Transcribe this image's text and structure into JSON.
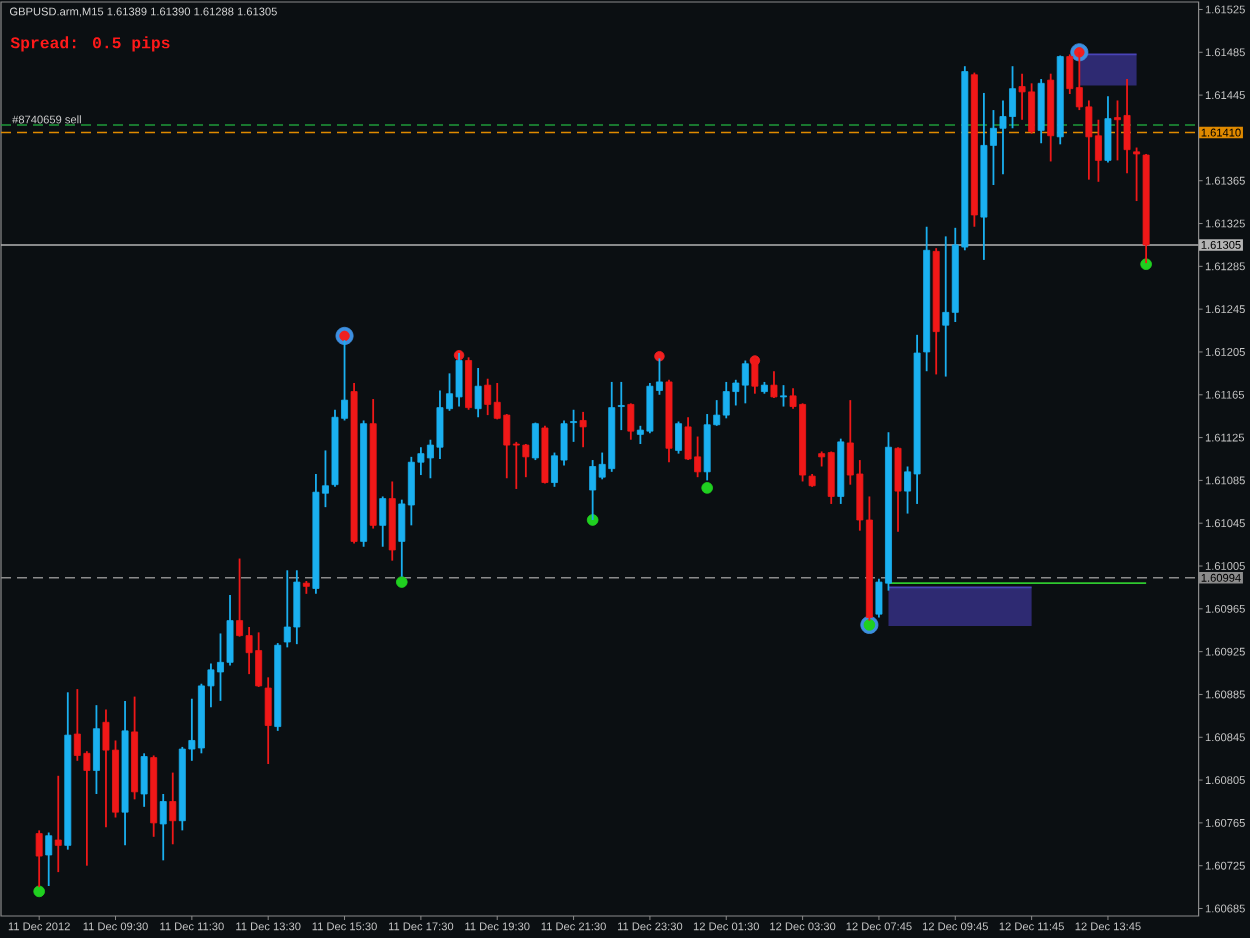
{
  "chart_data": {
    "type": "candlestick",
    "title": "GBPUSD.arm,M15 1.61389 1.61390 1.61288 1.61305",
    "subtitle": "Spread: 0.5 pips",
    "annotations": [
      {
        "text": "#8740659 sell",
        "y": 1.61417
      }
    ],
    "categories": [
      "11 Dec 2012",
      null,
      null,
      null,
      null,
      null,
      null,
      null,
      "11 Dec 09:30",
      null,
      null,
      null,
      null,
      null,
      null,
      null,
      "11 Dec 11:30",
      null,
      null,
      null,
      null,
      null,
      null,
      null,
      "11 Dec 13:30",
      null,
      null,
      null,
      null,
      null,
      null,
      null,
      "11 Dec 15:30",
      null,
      null,
      null,
      null,
      null,
      null,
      null,
      "11 Dec 17:30",
      null,
      null,
      null,
      null,
      null,
      null,
      null,
      "11 Dec 19:30",
      null,
      null,
      null,
      null,
      null,
      null,
      null,
      "11 Dec 21:30",
      null,
      null,
      null,
      null,
      null,
      null,
      null,
      "11 Dec 23:30",
      null,
      null,
      null,
      null,
      null,
      null,
      null,
      "12 Dec 01:30",
      null,
      null,
      null,
      null,
      null,
      null,
      null,
      "12 Dec 03:30",
      null,
      null,
      null,
      null,
      null,
      null,
      null,
      "12 Dec 07:45",
      null,
      null,
      null,
      null,
      null,
      null,
      null,
      "12 Dec 09:45",
      null,
      null,
      null,
      null,
      null,
      null,
      null,
      "12 Dec 11:45",
      null,
      null,
      null,
      null,
      null,
      null,
      null,
      "12 Dec 13:45",
      null,
      null,
      null,
      null
    ],
    "ylim": [
      1.60678,
      1.61532
    ],
    "yticks": [
      1.60685,
      1.60725,
      1.60765,
      1.60805,
      1.60845,
      1.60885,
      1.60925,
      1.60965,
      1.61005,
      1.61045,
      1.61085,
      1.61125,
      1.61165,
      1.61205,
      1.61245,
      1.61285,
      1.61325,
      1.61365,
      1.61445,
      1.61485,
      1.61525
    ],
    "ref_lines": [
      {
        "axis": "y",
        "value": 1.61417,
        "color": "#1f9a3a",
        "line_style": "dashed"
      },
      {
        "axis": "y",
        "value": 1.6141,
        "label": "1.61410",
        "color": "#e08a00",
        "line_style": "dashed"
      },
      {
        "axis": "y",
        "value": 1.61305,
        "label": "1.61305",
        "color": "#b4b4b4",
        "line_style": "solid"
      },
      {
        "axis": "y",
        "value": 1.60994,
        "label": "1.60994",
        "color": "#8c8c8c",
        "line_style": "dashed"
      }
    ],
    "series": [
      {
        "type": "line",
        "color": "#4a44b8",
        "values": [
          null,
          null,
          null,
          null,
          null,
          null,
          null,
          null,
          null,
          null,
          null,
          null,
          null,
          null,
          null,
          null,
          null,
          null,
          null,
          null,
          null,
          null,
          null,
          null,
          null,
          null,
          null,
          null,
          null,
          null,
          null,
          null,
          null,
          null,
          null,
          null,
          null,
          null,
          null,
          null,
          null,
          null,
          null,
          null,
          null,
          null,
          null,
          null,
          null,
          null,
          null,
          null,
          null,
          null,
          null,
          null,
          null,
          null,
          null,
          null,
          null,
          null,
          null,
          null,
          null,
          null,
          null,
          null,
          null,
          null,
          null,
          null,
          null,
          null,
          null,
          null,
          null,
          null,
          null,
          null,
          null,
          null,
          null,
          null,
          null,
          null,
          null,
          null,
          null,
          1.60985,
          1.60985,
          1.60985,
          1.60985,
          1.60985,
          1.60985,
          1.60985,
          1.60985,
          1.60985,
          1.60985,
          1.60985,
          1.60985,
          1.60985,
          1.60985,
          1.60985,
          1.60985,
          null,
          null,
          null,
          null,
          null,
          null,
          null,
          null,
          null,
          null,
          null,
          null
        ],
        "upper": [
          null,
          null,
          null,
          null,
          null,
          null,
          null,
          null,
          null,
          null,
          null,
          null,
          null,
          null,
          null,
          null,
          null,
          null,
          null,
          null,
          null,
          null,
          null,
          null,
          null,
          null,
          null,
          null,
          null,
          null,
          null,
          null,
          null,
          null,
          null,
          null,
          null,
          null,
          null,
          null,
          null,
          null,
          null,
          null,
          null,
          null,
          null,
          null,
          null,
          null,
          null,
          null,
          null,
          null,
          null,
          null,
          null,
          null,
          null,
          null,
          null,
          null,
          null,
          null,
          null,
          null,
          null,
          null,
          null,
          null,
          null,
          null,
          null,
          null,
          null,
          null,
          null,
          null,
          null,
          null,
          null,
          null,
          null,
          null,
          null,
          null,
          null,
          null,
          null,
          1.60985,
          1.60985,
          1.60985,
          1.60985,
          1.60985,
          1.60985,
          1.60985,
          1.60985,
          1.60985,
          1.60985,
          1.60985,
          1.60985,
          1.60985,
          1.60985,
          1.60985,
          1.60985,
          null,
          null,
          null,
          null,
          null,
          null,
          null,
          null,
          null,
          null,
          null,
          null
        ],
        "lower": [
          null,
          null,
          null,
          null,
          null,
          null,
          null,
          null,
          null,
          null,
          null,
          null,
          null,
          null,
          null,
          null,
          null,
          null,
          null,
          null,
          null,
          null,
          null,
          null,
          null,
          null,
          null,
          null,
          null,
          null,
          null,
          null,
          null,
          null,
          null,
          null,
          null,
          null,
          null,
          null,
          null,
          null,
          null,
          null,
          null,
          null,
          null,
          null,
          null,
          null,
          null,
          null,
          null,
          null,
          null,
          null,
          null,
          null,
          null,
          null,
          null,
          null,
          null,
          null,
          null,
          null,
          null,
          null,
          null,
          null,
          null,
          null,
          null,
          null,
          null,
          null,
          null,
          null,
          null,
          null,
          null,
          null,
          null,
          null,
          null,
          null,
          null,
          null,
          null,
          1.60949,
          1.60949,
          1.60949,
          1.60949,
          1.60949,
          1.60949,
          1.60949,
          1.60949,
          1.60949,
          1.60949,
          1.60949,
          1.60949,
          1.60949,
          1.60949,
          1.60949,
          1.60949,
          null,
          null,
          null,
          null,
          null,
          null,
          null,
          null,
          null,
          null,
          null,
          null
        ]
      },
      {
        "type": "line",
        "color": "#4a44b8",
        "values": [
          null,
          null,
          null,
          null,
          null,
          null,
          null,
          null,
          null,
          null,
          null,
          null,
          null,
          null,
          null,
          null,
          null,
          null,
          null,
          null,
          null,
          null,
          null,
          null,
          null,
          null,
          null,
          null,
          null,
          null,
          null,
          null,
          null,
          null,
          null,
          null,
          null,
          null,
          null,
          null,
          null,
          null,
          null,
          null,
          null,
          null,
          null,
          null,
          null,
          null,
          null,
          null,
          null,
          null,
          null,
          null,
          null,
          null,
          null,
          null,
          null,
          null,
          null,
          null,
          null,
          null,
          null,
          null,
          null,
          null,
          null,
          null,
          null,
          null,
          null,
          null,
          null,
          null,
          null,
          null,
          null,
          null,
          null,
          null,
          null,
          null,
          null,
          null,
          null,
          null,
          null,
          null,
          null,
          null,
          null,
          null,
          null,
          null,
          null,
          null,
          null,
          null,
          null,
          null,
          null,
          null,
          null,
          null,
          null,
          1.61483,
          1.61483,
          1.61483,
          1.61483,
          1.61483,
          1.61483,
          1.61483,
          null
        ],
        "upper": [
          null,
          null,
          null,
          null,
          null,
          null,
          null,
          null,
          null,
          null,
          null,
          null,
          null,
          null,
          null,
          null,
          null,
          null,
          null,
          null,
          null,
          null,
          null,
          null,
          null,
          null,
          null,
          null,
          null,
          null,
          null,
          null,
          null,
          null,
          null,
          null,
          null,
          null,
          null,
          null,
          null,
          null,
          null,
          null,
          null,
          null,
          null,
          null,
          null,
          null,
          null,
          null,
          null,
          null,
          null,
          null,
          null,
          null,
          null,
          null,
          null,
          null,
          null,
          null,
          null,
          null,
          null,
          null,
          null,
          null,
          null,
          null,
          null,
          null,
          null,
          null,
          null,
          null,
          null,
          null,
          null,
          null,
          null,
          null,
          null,
          null,
          null,
          null,
          null,
          null,
          null,
          null,
          null,
          null,
          null,
          null,
          null,
          null,
          null,
          null,
          null,
          null,
          null,
          null,
          null,
          null,
          null,
          null,
          null,
          1.61483,
          1.61483,
          1.61483,
          1.61483,
          1.61483,
          1.61483,
          1.61483,
          null
        ],
        "lower": [
          null,
          null,
          null,
          null,
          null,
          null,
          null,
          null,
          null,
          null,
          null,
          null,
          null,
          null,
          null,
          null,
          null,
          null,
          null,
          null,
          null,
          null,
          null,
          null,
          null,
          null,
          null,
          null,
          null,
          null,
          null,
          null,
          null,
          null,
          null,
          null,
          null,
          null,
          null,
          null,
          null,
          null,
          null,
          null,
          null,
          null,
          null,
          null,
          null,
          null,
          null,
          null,
          null,
          null,
          null,
          null,
          null,
          null,
          null,
          null,
          null,
          null,
          null,
          null,
          null,
          null,
          null,
          null,
          null,
          null,
          null,
          null,
          null,
          null,
          null,
          null,
          null,
          null,
          null,
          null,
          null,
          null,
          null,
          null,
          null,
          null,
          null,
          null,
          null,
          null,
          null,
          null,
          null,
          null,
          null,
          null,
          null,
          null,
          null,
          null,
          null,
          null,
          null,
          null,
          null,
          null,
          null,
          null,
          null,
          1.61454,
          1.61454,
          1.61454,
          1.61454,
          1.61454,
          1.61454,
          1.61454,
          null
        ]
      },
      {
        "type": "line",
        "color": "#2fc92f",
        "values": [
          null,
          null,
          null,
          null,
          null,
          null,
          null,
          null,
          null,
          null,
          null,
          null,
          null,
          null,
          null,
          null,
          null,
          null,
          null,
          null,
          null,
          null,
          null,
          null,
          null,
          null,
          null,
          null,
          null,
          null,
          null,
          null,
          null,
          null,
          null,
          null,
          null,
          null,
          null,
          null,
          null,
          null,
          null,
          null,
          null,
          null,
          null,
          null,
          null,
          null,
          null,
          null,
          null,
          null,
          null,
          null,
          null,
          null,
          null,
          null,
          null,
          null,
          null,
          null,
          null,
          null,
          null,
          null,
          null,
          null,
          null,
          null,
          null,
          null,
          null,
          null,
          null,
          null,
          null,
          null,
          null,
          null,
          null,
          null,
          null,
          null,
          null,
          null,
          null,
          1.60989,
          1.60989,
          1.60989,
          1.60989,
          1.60989,
          1.60989,
          1.60989,
          1.60989,
          1.60989,
          1.60989,
          1.60989,
          1.60989,
          1.60989,
          1.60989,
          1.60989,
          1.60989,
          1.60989,
          1.60989,
          1.60989,
          1.60989,
          1.60989,
          1.60989,
          1.60989,
          1.60989,
          1.60989,
          1.60989,
          1.60989,
          1.60989
        ]
      },
      {
        "type": "scatter",
        "marker": "circle",
        "color": "#3d8fe0",
        "values": [
          null,
          null,
          null,
          null,
          null,
          null,
          null,
          null,
          null,
          null,
          null,
          null,
          null,
          null,
          null,
          null,
          null,
          null,
          null,
          null,
          null,
          null,
          null,
          null,
          null,
          null,
          null,
          null,
          null,
          null,
          null,
          null,
          1.6122,
          null,
          null,
          null,
          null,
          null,
          null,
          null,
          null,
          null,
          null,
          null,
          null,
          null,
          null,
          null,
          null,
          null,
          null,
          null,
          null,
          null,
          null,
          null,
          null,
          null,
          null,
          null,
          null,
          null,
          null,
          null,
          null,
          null,
          null,
          null,
          null,
          null,
          null,
          null,
          null,
          null,
          null,
          null,
          null,
          null,
          null,
          null,
          null,
          null,
          null,
          null,
          null,
          null,
          null,
          1.6095,
          null,
          null,
          null,
          null,
          null,
          null,
          null,
          null,
          null,
          null,
          null,
          null,
          null,
          null,
          null,
          null,
          null,
          null,
          null,
          null,
          null,
          1.61485,
          null,
          null,
          null,
          null,
          null,
          null,
          null
        ]
      },
      {
        "type": "scatter",
        "marker": "circle",
        "color": "#f02020",
        "values": [
          null,
          null,
          null,
          null,
          null,
          null,
          null,
          null,
          null,
          null,
          null,
          null,
          null,
          null,
          null,
          null,
          null,
          null,
          null,
          null,
          null,
          null,
          null,
          null,
          null,
          null,
          null,
          null,
          null,
          null,
          null,
          null,
          1.6122,
          null,
          null,
          null,
          null,
          null,
          null,
          null,
          null,
          null,
          null,
          null,
          1.61202,
          null,
          null,
          null,
          null,
          null,
          null,
          null,
          null,
          null,
          null,
          null,
          null,
          null,
          null,
          null,
          null,
          null,
          null,
          null,
          null,
          1.61201,
          null,
          null,
          null,
          null,
          null,
          null,
          null,
          null,
          null,
          1.61197,
          null,
          null,
          null,
          null,
          null,
          null,
          null,
          null,
          null,
          null,
          null,
          null,
          null,
          null,
          null,
          null,
          null,
          null,
          null,
          null,
          null,
          null,
          null,
          null,
          null,
          null,
          null,
          null,
          null,
          null,
          null,
          null,
          null,
          1.61485,
          null,
          null,
          null,
          null,
          null,
          null,
          null
        ]
      },
      {
        "type": "scatter",
        "marker": "circle",
        "color": "#20d020",
        "values": [
          1.60701,
          null,
          null,
          null,
          null,
          null,
          null,
          null,
          null,
          null,
          null,
          null,
          null,
          null,
          null,
          null,
          null,
          null,
          null,
          null,
          null,
          null,
          null,
          null,
          null,
          null,
          null,
          null,
          null,
          null,
          null,
          null,
          null,
          null,
          null,
          null,
          null,
          null,
          1.6099,
          null,
          null,
          null,
          null,
          null,
          null,
          null,
          null,
          null,
          null,
          null,
          null,
          null,
          null,
          null,
          null,
          null,
          null,
          null,
          1.61048,
          null,
          null,
          null,
          null,
          null,
          null,
          null,
          null,
          null,
          null,
          null,
          1.61078,
          null,
          null,
          null,
          null,
          null,
          null,
          null,
          null,
          null,
          null,
          null,
          null,
          null,
          null,
          null,
          null,
          1.6095,
          null,
          null,
          null,
          null,
          null,
          null,
          null,
          null,
          null,
          null,
          null,
          null,
          null,
          null,
          null,
          null,
          null,
          null,
          null,
          null,
          null,
          null,
          null,
          null,
          null,
          null,
          null,
          null,
          1.61287
        ]
      },
      {
        "type": "candlestick",
        "ohlc": [
          [
            1.60755,
            1.60758,
            1.60705,
            1.60734
          ],
          [
            1.60735,
            1.60756,
            1.60706,
            1.60753
          ],
          [
            1.60749,
            1.60809,
            1.60719,
            1.60744
          ],
          [
            1.60744,
            1.60887,
            1.6074,
            1.60847
          ],
          [
            1.60848,
            1.6089,
            1.60823,
            1.60828
          ],
          [
            1.6083,
            1.60832,
            1.60725,
            1.60814
          ],
          [
            1.60814,
            1.60875,
            1.60792,
            1.60853
          ],
          [
            1.60859,
            1.60871,
            1.60761,
            1.60833
          ],
          [
            1.60833,
            1.60842,
            1.6077,
            1.60775
          ],
          [
            1.60775,
            1.60879,
            1.60744,
            1.60851
          ],
          [
            1.6085,
            1.60883,
            1.60787,
            1.60794
          ],
          [
            1.60792,
            1.6083,
            1.6078,
            1.60827
          ],
          [
            1.60826,
            1.60828,
            1.60752,
            1.60765
          ],
          [
            1.60764,
            1.60792,
            1.6073,
            1.60785
          ],
          [
            1.60785,
            1.60812,
            1.60745,
            1.60767
          ],
          [
            1.60767,
            1.60836,
            1.60758,
            1.60834
          ],
          [
            1.60834,
            1.60881,
            1.60823,
            1.60842
          ],
          [
            1.60835,
            1.60895,
            1.6083,
            1.60893
          ],
          [
            1.60893,
            1.60914,
            1.60873,
            1.60908
          ],
          [
            1.60906,
            1.60942,
            1.60879,
            1.60915
          ],
          [
            1.60915,
            1.60978,
            1.60912,
            1.60954
          ],
          [
            1.60954,
            1.61012,
            1.60939,
            1.6094
          ],
          [
            1.6094,
            1.60948,
            1.60904,
            1.60924
          ],
          [
            1.60926,
            1.60943,
            1.60892,
            1.60893
          ],
          [
            1.60891,
            1.60901,
            1.6082,
            1.60856
          ],
          [
            1.60855,
            1.60933,
            1.60851,
            1.60931
          ],
          [
            1.60934,
            1.61001,
            1.60929,
            1.60948
          ],
          [
            1.60948,
            1.61001,
            1.60932,
            1.6099
          ],
          [
            1.60989,
            1.60991,
            1.60979,
            1.60986
          ],
          [
            1.60984,
            1.61091,
            1.60979,
            1.61074
          ],
          [
            1.61073,
            1.61113,
            1.6106,
            1.6108
          ],
          [
            1.61081,
            1.61151,
            1.61079,
            1.61144
          ],
          [
            1.61143,
            1.61216,
            1.61141,
            1.6116
          ],
          [
            1.61168,
            1.61176,
            1.61026,
            1.61028
          ],
          [
            1.61028,
            1.61141,
            1.61023,
            1.61138
          ],
          [
            1.61138,
            1.61161,
            1.6104,
            1.61043
          ],
          [
            1.61043,
            1.6107,
            1.61023,
            1.61068
          ],
          [
            1.61068,
            1.61084,
            1.6101,
            1.6102
          ],
          [
            1.61028,
            1.61067,
            1.60995,
            1.61063
          ],
          [
            1.61062,
            1.61107,
            1.61043,
            1.61102
          ],
          [
            1.61102,
            1.61116,
            1.6109,
            1.6111
          ],
          [
            1.61106,
            1.61123,
            1.61087,
            1.61118
          ],
          [
            1.61116,
            1.61169,
            1.61105,
            1.61153
          ],
          [
            1.61152,
            1.61185,
            1.6115,
            1.61166
          ],
          [
            1.61163,
            1.61204,
            1.61154,
            1.61197
          ],
          [
            1.61197,
            1.612,
            1.61151,
            1.61153
          ],
          [
            1.61152,
            1.6119,
            1.61144,
            1.61173
          ],
          [
            1.61174,
            1.6118,
            1.61146,
            1.61156
          ],
          [
            1.61158,
            1.61176,
            1.61142,
            1.61143
          ],
          [
            1.61146,
            1.61147,
            1.61087,
            1.61118
          ],
          [
            1.61119,
            1.61121,
            1.61077,
            1.61118
          ],
          [
            1.61118,
            1.61119,
            1.61088,
            1.61107
          ],
          [
            1.61106,
            1.61139,
            1.61104,
            1.61138
          ],
          [
            1.61134,
            1.61136,
            1.61082,
            1.61083
          ],
          [
            1.61083,
            1.61111,
            1.61079,
            1.61108
          ],
          [
            1.61104,
            1.61141,
            1.61099,
            1.61138
          ],
          [
            1.61139,
            1.61151,
            1.61121,
            1.6114
          ],
          [
            1.61141,
            1.61149,
            1.61116,
            1.61135
          ],
          [
            1.61076,
            1.61104,
            1.61048,
            1.61098
          ],
          [
            1.61088,
            1.61111,
            1.61086,
            1.611
          ],
          [
            1.61096,
            1.61177,
            1.61093,
            1.61153
          ],
          [
            1.61154,
            1.61177,
            1.61132,
            1.61155
          ],
          [
            1.61156,
            1.61157,
            1.61123,
            1.61131
          ],
          [
            1.61128,
            1.61136,
            1.61119,
            1.61132
          ],
          [
            1.61131,
            1.61176,
            1.61129,
            1.61173
          ],
          [
            1.61169,
            1.61199,
            1.61165,
            1.61177
          ],
          [
            1.61177,
            1.61179,
            1.61102,
            1.61115
          ],
          [
            1.61113,
            1.6114,
            1.6111,
            1.61138
          ],
          [
            1.61135,
            1.61144,
            1.61104,
            1.61105
          ],
          [
            1.61107,
            1.61126,
            1.61088,
            1.61093
          ],
          [
            1.61093,
            1.61147,
            1.61085,
            1.61137
          ],
          [
            1.61137,
            1.6116,
            1.61136,
            1.61146
          ],
          [
            1.61146,
            1.61177,
            1.61143,
            1.61168
          ],
          [
            1.61168,
            1.61179,
            1.61155,
            1.61176
          ],
          [
            1.61174,
            1.61197,
            1.61157,
            1.61194
          ],
          [
            1.61199,
            1.61201,
            1.61166,
            1.61173
          ],
          [
            1.61168,
            1.61177,
            1.61166,
            1.61174
          ],
          [
            1.61174,
            1.61187,
            1.61162,
            1.61163
          ],
          [
            1.61163,
            1.61174,
            1.61154,
            1.61164
          ],
          [
            1.61164,
            1.61171,
            1.61152,
            1.61154
          ],
          [
            1.61156,
            1.61157,
            1.61084,
            1.6109
          ],
          [
            1.61089,
            1.61091,
            1.61079,
            1.6108
          ],
          [
            1.6111,
            1.61112,
            1.61098,
            1.61107
          ],
          [
            1.61111,
            1.61112,
            1.61063,
            1.6107
          ],
          [
            1.6107,
            1.61124,
            1.61063,
            1.61121
          ],
          [
            1.6112,
            1.6116,
            1.61081,
            1.6109
          ],
          [
            1.61091,
            1.61104,
            1.61038,
            1.61048
          ],
          [
            1.61048,
            1.6107,
            1.60954,
            1.60957
          ],
          [
            1.6096,
            1.60993,
            1.60957,
            1.6099
          ],
          [
            1.60989,
            1.6113,
            1.60982,
            1.61116
          ],
          [
            1.61115,
            1.61116,
            1.61037,
            1.61075
          ],
          [
            1.61075,
            1.61098,
            1.61054,
            1.61093
          ],
          [
            1.61091,
            1.61221,
            1.61063,
            1.61204
          ],
          [
            1.61205,
            1.61322,
            1.61187,
            1.613
          ],
          [
            1.61299,
            1.61302,
            1.61184,
            1.61224
          ],
          [
            1.6123,
            1.61313,
            1.61182,
            1.61242
          ],
          [
            1.61242,
            1.61321,
            1.61233,
            1.61305
          ],
          [
            1.61303,
            1.61472,
            1.613,
            1.61467
          ],
          [
            1.61464,
            1.61466,
            1.61322,
            1.61333
          ],
          [
            1.61331,
            1.61447,
            1.61291,
            1.61398
          ],
          [
            1.61398,
            1.61431,
            1.61361,
            1.61414
          ],
          [
            1.61414,
            1.6144,
            1.61371,
            1.61425
          ],
          [
            1.61425,
            1.61472,
            1.61414,
            1.61451
          ],
          [
            1.61453,
            1.61465,
            1.61422,
            1.61448
          ],
          [
            1.61448,
            1.61456,
            1.61409,
            1.61411
          ],
          [
            1.61412,
            1.6146,
            1.614,
            1.61456
          ],
          [
            1.61459,
            1.61465,
            1.61383,
            1.61407
          ],
          [
            1.61406,
            1.61482,
            1.61399,
            1.61481
          ],
          [
            1.61481,
            1.61483,
            1.61446,
            1.61451
          ],
          [
            1.61452,
            1.61485,
            1.61431,
            1.61434
          ],
          [
            1.61434,
            1.6144,
            1.61366,
            1.61406
          ],
          [
            1.61407,
            1.61422,
            1.61364,
            1.61384
          ],
          [
            1.61384,
            1.61444,
            1.61382,
            1.61423
          ],
          [
            1.61424,
            1.6144,
            1.61384,
            1.61422
          ],
          [
            1.61426,
            1.6146,
            1.61372,
            1.61394
          ],
          [
            1.61392,
            1.61396,
            1.61346,
            1.6139
          ],
          [
            1.61389,
            1.6139,
            1.61288,
            1.61305
          ]
        ],
        "colors": [
          "#f01818",
          "#1ab0f0",
          "#f01818",
          "#1ab0f0",
          "#f01818",
          "#f01818",
          "#1ab0f0",
          "#f01818",
          "#f01818",
          "#1ab0f0",
          "#f01818",
          "#1ab0f0",
          "#f01818",
          "#1ab0f0",
          "#f01818",
          "#1ab0f0",
          "#1ab0f0",
          "#1ab0f0",
          "#1ab0f0",
          "#1ab0f0",
          "#1ab0f0",
          "#f01818",
          "#f01818",
          "#f01818",
          "#f01818",
          "#1ab0f0",
          "#1ab0f0",
          "#1ab0f0",
          "#f01818",
          "#1ab0f0",
          "#1ab0f0",
          "#1ab0f0",
          "#1ab0f0",
          "#f01818",
          "#1ab0f0",
          "#f01818",
          "#1ab0f0",
          "#f01818",
          "#1ab0f0",
          "#1ab0f0",
          "#1ab0f0",
          "#1ab0f0",
          "#1ab0f0",
          "#1ab0f0",
          "#1ab0f0",
          "#f01818",
          "#1ab0f0",
          "#f01818",
          "#f01818",
          "#f01818",
          "#f01818",
          "#f01818",
          "#1ab0f0",
          "#f01818",
          "#1ab0f0",
          "#1ab0f0",
          "#1ab0f0",
          "#f01818",
          "#1ab0f0",
          "#1ab0f0",
          "#1ab0f0",
          "#1ab0f0",
          "#f01818",
          "#1ab0f0",
          "#1ab0f0",
          "#1ab0f0",
          "#f01818",
          "#1ab0f0",
          "#f01818",
          "#f01818",
          "#1ab0f0",
          "#1ab0f0",
          "#1ab0f0",
          "#1ab0f0",
          "#1ab0f0",
          "#f01818",
          "#1ab0f0",
          "#f01818",
          "#1ab0f0",
          "#f01818",
          "#f01818",
          "#f01818",
          "#f01818",
          "#f01818",
          "#1ab0f0",
          "#f01818",
          "#f01818",
          "#f01818",
          "#1ab0f0",
          "#1ab0f0",
          "#f01818",
          "#1ab0f0",
          "#1ab0f0",
          "#1ab0f0",
          "#f01818",
          "#1ab0f0",
          "#1ab0f0",
          "#1ab0f0",
          "#f01818",
          "#1ab0f0",
          "#1ab0f0",
          "#1ab0f0",
          "#1ab0f0",
          "#f01818",
          "#f01818",
          "#1ab0f0",
          "#f01818",
          "#1ab0f0",
          "#f01818",
          "#f01818",
          "#f01818",
          "#f01818",
          "#1ab0f0",
          "#f01818",
          "#f01818",
          "#f01818",
          "#f01818"
        ]
      }
    ]
  }
}
